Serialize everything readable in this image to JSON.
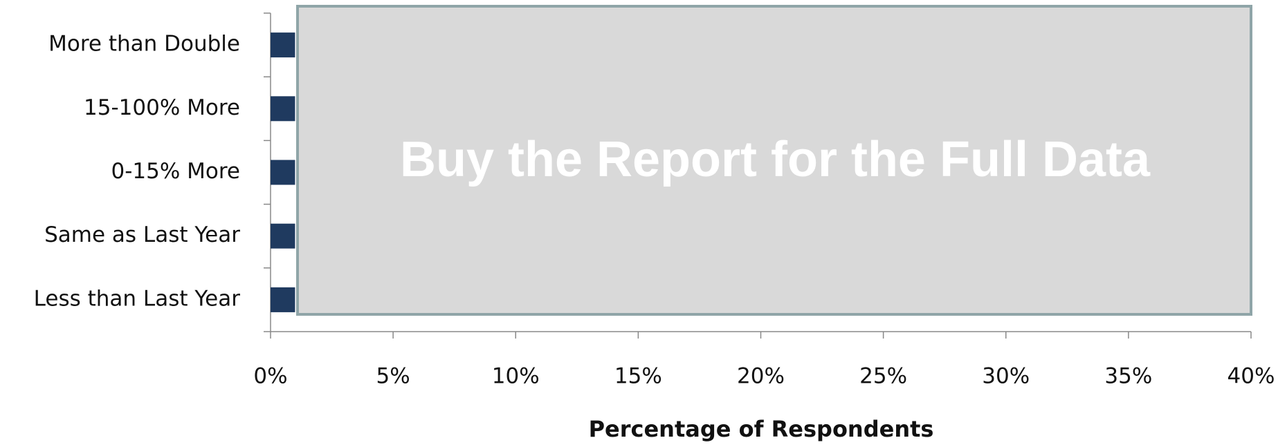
{
  "chart_data": {
    "type": "hbar",
    "categories": [
      "More than Double",
      "15-100% More",
      "0-15% More",
      "Same as Last Year",
      "Less than Last Year"
    ],
    "values": [
      1,
      1,
      1,
      1,
      1
    ],
    "color": "#1f3a5f",
    "xlabel": "Percentage of Respondents",
    "xlim": [
      0,
      40
    ],
    "xticks": [
      {
        "value": 0,
        "label": "0%"
      },
      {
        "value": 5,
        "label": "5%"
      },
      {
        "value": 10,
        "label": "10%"
      },
      {
        "value": 15,
        "label": "15%"
      },
      {
        "value": 20,
        "label": "20%"
      },
      {
        "value": 25,
        "label": "25%"
      },
      {
        "value": 30,
        "label": "30%"
      },
      {
        "value": 35,
        "label": "35%"
      },
      {
        "value": 40,
        "label": "40%"
      }
    ],
    "annotation": "Buy the Report for the Full Data"
  }
}
